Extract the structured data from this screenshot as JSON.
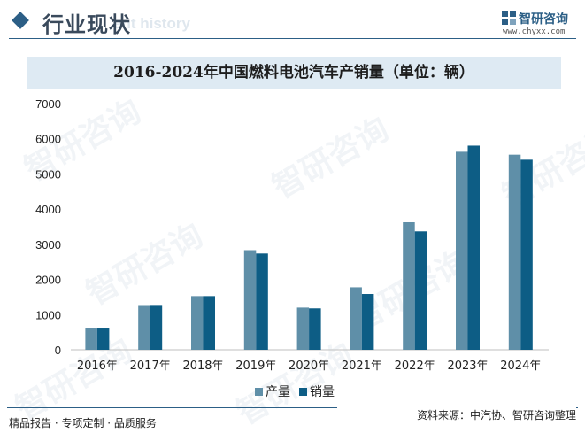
{
  "header": {
    "title": "行业现状",
    "subtitle": "ent history",
    "logo_text": "智研咨询",
    "logo_url": "www.chyxx.com"
  },
  "watermark": "智研咨询",
  "chart_data": {
    "type": "bar",
    "title": "2016-2024年中国燃料电池汽车产销量（单位：辆）",
    "categories": [
      "2016年",
      "2017年",
      "2018年",
      "2019年",
      "2020年",
      "2021年",
      "2022年",
      "2023年",
      "2024年"
    ],
    "series": [
      {
        "name": "产量",
        "values": [
          629,
          1272,
          1527,
          2833,
          1199,
          1777,
          3626,
          5631,
          5548
        ],
        "color": "#5f8fa8"
      },
      {
        "name": "销量",
        "values": [
          629,
          1275,
          1527,
          2737,
          1177,
          1586,
          3367,
          5805,
          5405
        ],
        "color": "#0d5d85"
      }
    ],
    "ylim": [
      0,
      7000
    ],
    "yticks": [
      0,
      1000,
      2000,
      3000,
      4000,
      5000,
      6000,
      7000
    ],
    "xlabel": "",
    "ylabel": "",
    "grid": false,
    "legend_position": "bottom"
  },
  "footer": {
    "left": "精品报告 · 专项定制 · 品质服务",
    "right": "资料来源：中汽协、智研咨询整理"
  }
}
